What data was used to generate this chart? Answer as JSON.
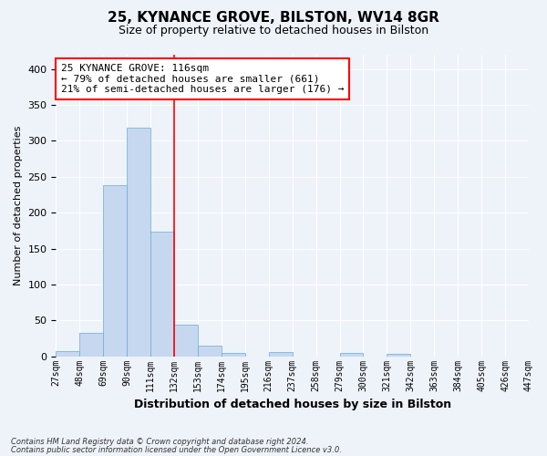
{
  "title_line1": "25, KYNANCE GROVE, BILSTON, WV14 8GR",
  "title_line2": "Size of property relative to detached houses in Bilston",
  "xlabel": "Distribution of detached houses by size in Bilston",
  "ylabel": "Number of detached properties",
  "footer_line1": "Contains HM Land Registry data © Crown copyright and database right 2024.",
  "footer_line2": "Contains public sector information licensed under the Open Government Licence v3.0.",
  "bin_labels": [
    "27sqm",
    "48sqm",
    "69sqm",
    "90sqm",
    "111sqm",
    "132sqm",
    "153sqm",
    "174sqm",
    "195sqm",
    "216sqm",
    "237sqm",
    "258sqm",
    "279sqm",
    "300sqm",
    "321sqm",
    "342sqm",
    "363sqm",
    "384sqm",
    "405sqm",
    "426sqm",
    "447sqm"
  ],
  "bar_values": [
    7,
    32,
    238,
    318,
    174,
    44,
    15,
    5,
    0,
    6,
    0,
    0,
    4,
    0,
    3,
    0,
    0,
    0,
    0,
    0
  ],
  "bar_color": "#c5d8f0",
  "bar_edge_color": "#6aabd2",
  "property_line_x": 4.5,
  "property_line_color": "red",
  "annotation_text": "25 KYNANCE GROVE: 116sqm\n← 79% of detached houses are smaller (661)\n21% of semi-detached houses are larger (176) →",
  "annotation_box_color": "white",
  "annotation_box_edge_color": "red",
  "ylim": [
    0,
    420
  ],
  "yticks": [
    0,
    50,
    100,
    150,
    200,
    250,
    300,
    350,
    400
  ],
  "background_color": "#eef2f9",
  "grid_color": "white"
}
